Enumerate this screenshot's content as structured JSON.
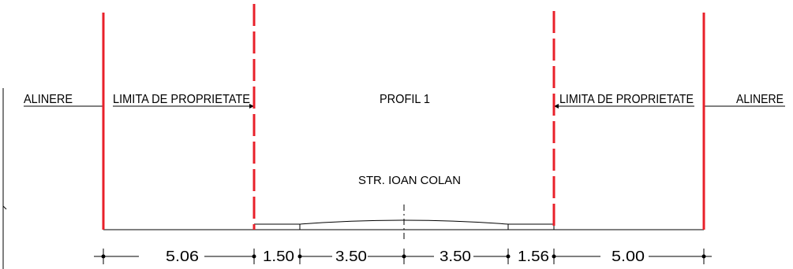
{
  "labels": {
    "alinere_left": "ALINERE",
    "limita_left": "LIMITA DE PROPRIETATE",
    "profil": "PROFIL 1",
    "limita_right": "LIMITA DE PROPRIETATE",
    "alinere_right": "ALINERE",
    "street": "STR. IOAN COLAN"
  },
  "dimensions": [
    "5.06",
    "1.50",
    "3.50",
    "3.50",
    "1.56",
    "5.00"
  ],
  "colors": {
    "property_line": "#e8202a",
    "ink": "#000000",
    "ink_light": "#555555"
  }
}
